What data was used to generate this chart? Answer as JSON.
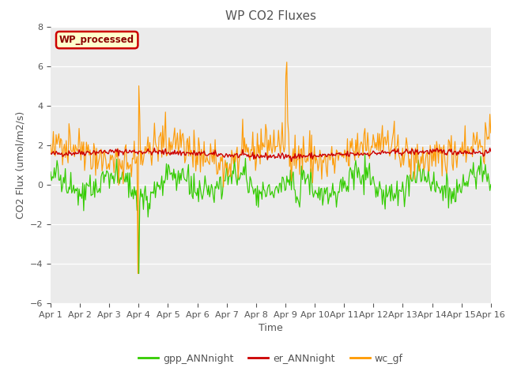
{
  "title": "WP CO2 Fluxes",
  "xlabel": "Time",
  "ylabel": "CO2 Flux (umol/m2/s)",
  "ylim": [
    -6,
    8
  ],
  "yticks": [
    -6,
    -4,
    -2,
    0,
    2,
    4,
    6,
    8
  ],
  "xtick_labels": [
    "Apr 1",
    "Apr 2",
    "Apr 3",
    "Apr 4",
    "Apr 5",
    "Apr 6",
    "Apr 7",
    "Apr 8",
    "Apr 9",
    "Apr 10",
    "Apr 11",
    "Apr 12",
    "Apr 13",
    "Apr 14",
    "Apr 15",
    "Apr 16"
  ],
  "watermark_text": "WP_processed",
  "watermark_color": "#8B0000",
  "watermark_bg": "#FFFFCC",
  "watermark_border": "#CC0000",
  "line_green_color": "#33CC00",
  "line_red_color": "#CC0000",
  "line_orange_color": "#FF9900",
  "legend_labels": [
    "gpp_ANNnight",
    "er_ANNnight",
    "wc_gf"
  ],
  "bg_color": "#EBEBEB",
  "fig_bg_color": "#FFFFFF",
  "title_fontsize": 11,
  "axis_label_fontsize": 9,
  "tick_fontsize": 8,
  "n_points": 480,
  "seed": 42
}
